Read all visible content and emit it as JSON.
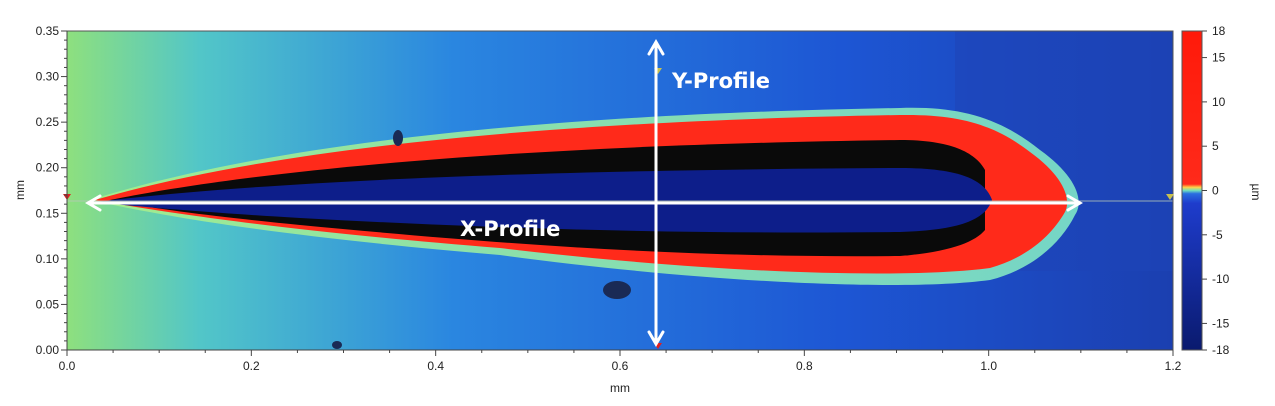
{
  "chart_data": {
    "type": "heatmap",
    "title": "",
    "xlabel": "mm",
    "ylabel": "mm",
    "colorbar_label": "µm",
    "xlim": [
      0.0,
      1.2
    ],
    "ylim": [
      0.0,
      0.35
    ],
    "x_ticks": [
      "0.0",
      "0.2",
      "0.4",
      "0.6",
      "0.8",
      "1.0",
      "1.2"
    ],
    "y_ticks": [
      "0.00",
      "0.05",
      "0.10",
      "0.15",
      "0.20",
      "0.25",
      "0.30",
      "0.35"
    ],
    "colorbar_range": [
      -18,
      18
    ],
    "colorbar_ticks": [
      "18",
      "15",
      "10",
      "5",
      "0",
      "-5",
      "-10",
      "-15",
      "-18"
    ],
    "colorscale": [
      "#0a1a6e",
      "#1e3ccc",
      "#1f7fe0",
      "#55c8c8",
      "#9fe08a",
      "#ff2a1a"
    ],
    "annotations": [
      {
        "text": "X-Profile",
        "x_start": 0.02,
        "x_end": 1.1,
        "y": 0.163
      },
      {
        "text": "Y-Profile",
        "x": 0.64,
        "y_start": 0.0,
        "y_end": 0.35
      }
    ]
  }
}
